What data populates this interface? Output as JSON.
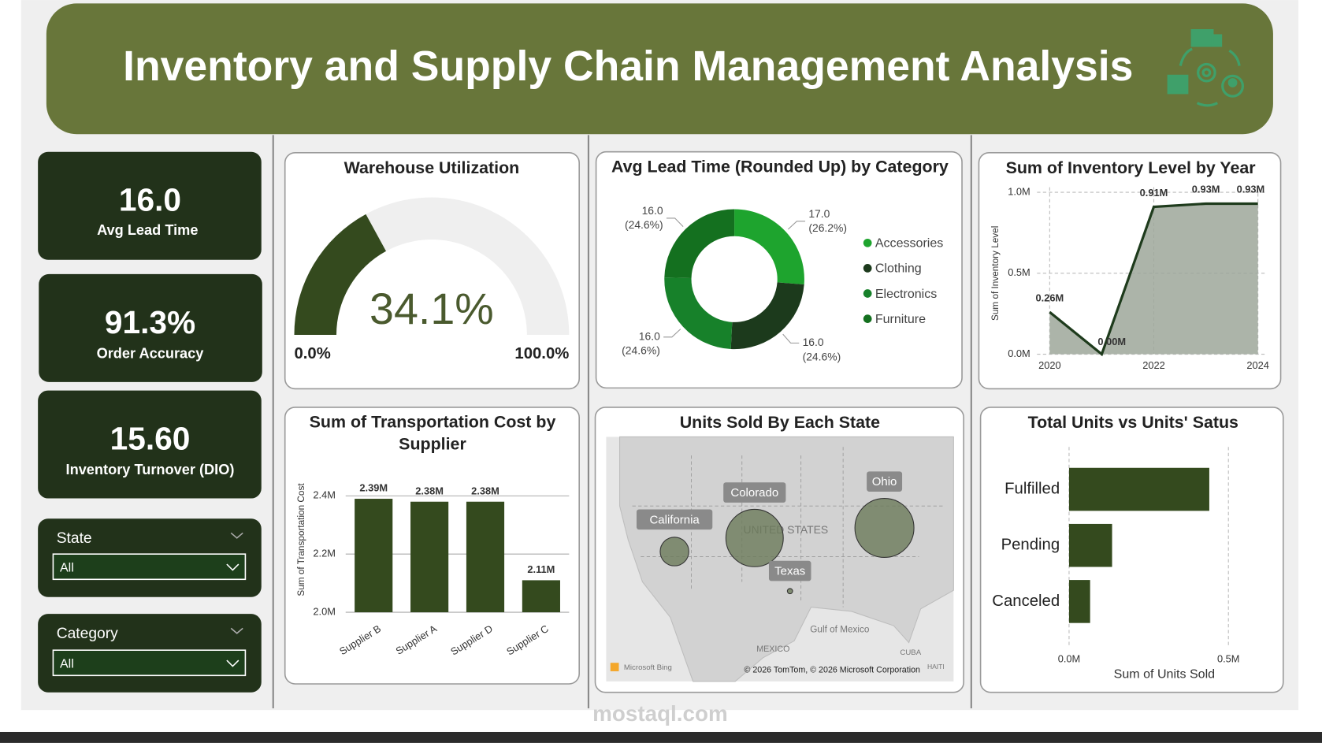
{
  "header": {
    "title": "Inventory and Supply Chain Management Analysis"
  },
  "kpis": [
    {
      "value": "16.0",
      "label": "Avg Lead Time"
    },
    {
      "value": "91.3%",
      "label": "Order Accuracy"
    },
    {
      "value": "15.60",
      "label": "Inventory Turnover (DIO)"
    }
  ],
  "filters": [
    {
      "label": "State",
      "value": "All"
    },
    {
      "label": "Category",
      "value": "All"
    }
  ],
  "watermark": "mostaql.com",
  "chart_data": [
    {
      "type": "gauge",
      "title": "Warehouse Utilization",
      "values": [
        34.1
      ],
      "value_labels": [
        "34.1%"
      ],
      "color": "#344a1e",
      "track_color": "#efefef",
      "ylim": [
        0,
        100
      ],
      "yticks": [
        {
          "value": 0,
          "label": "0.0%"
        },
        {
          "value": 100,
          "label": "100.0%"
        }
      ]
    },
    {
      "type": "pie",
      "title": "Avg Lead Time (Rounded Up) by Category",
      "categories": [
        "Accessories",
        "Clothing",
        "Electronics",
        "Furniture"
      ],
      "values": [
        17.0,
        16.0,
        16.0,
        16.0
      ],
      "value_labels": [
        "17.0",
        "16.0",
        "16.0",
        "16.0"
      ],
      "shares": [
        26.2,
        24.6,
        24.6,
        24.6
      ],
      "share_labels": [
        "(26.2%)",
        "(24.6%)",
        "(24.6%)",
        "(24.6%)"
      ],
      "colors": [
        "#1ea42e",
        "#1c3a1c",
        "#17812a",
        "#14701f"
      ],
      "legend": "right"
    },
    {
      "type": "area",
      "title": "Sum of Inventory Level by Year",
      "y_label": "Sum of Inventory Level",
      "x": [
        2020,
        2021,
        2022,
        2023,
        2024
      ],
      "values": [
        260000,
        0,
        910000,
        930000,
        930000
      ],
      "value_labels": [
        "0.26M",
        "0.00M",
        "0.91M",
        "0.93M",
        "0.93M"
      ],
      "color": "#1e3b1c",
      "fill": "#9ea79a",
      "xlim": [
        2020,
        2024
      ],
      "xticks": [
        2020,
        2022,
        2024
      ],
      "ylim": [
        0,
        1000000
      ],
      "yticks": [
        {
          "value": 0,
          "label": "0.0M"
        },
        {
          "value": 500000,
          "label": "0.5M"
        },
        {
          "value": 1000000,
          "label": "1.0M"
        }
      ],
      "grid": true
    },
    {
      "type": "bar",
      "title": "Sum of Transportation Cost by Supplier",
      "y_label": "Sum of Transportation Cost",
      "categories": [
        "Supplier B",
        "Supplier A",
        "Supplier D",
        "Supplier C"
      ],
      "values": [
        2390000,
        2380000,
        2380000,
        2110000
      ],
      "value_labels": [
        "2.39M",
        "2.38M",
        "2.38M",
        "2.11M"
      ],
      "color": "#344a1e",
      "ylim": [
        2000000,
        2450000
      ],
      "yticks": [
        {
          "value": 2000000,
          "label": "2.0M"
        },
        {
          "value": 2200000,
          "label": "2.2M"
        },
        {
          "value": 2400000,
          "label": "2.4M"
        }
      ],
      "grid": true
    },
    {
      "type": "map",
      "title": "Units Sold By Each State",
      "categories": [
        "California",
        "Colorado",
        "Ohio",
        "Texas"
      ],
      "values": [
        59000,
        237000,
        251000,
        2000
      ],
      "color": "#6b7a5a",
      "map_labels": [
        "UNITED STATES",
        "Gulf of Mexico",
        "MEXICO",
        "CUBA",
        "HAITI",
        "Microsoft Bing",
        "© 2026 TomTom, © 2026 Microsoft Corporation"
      ]
    },
    {
      "type": "bar",
      "orientation": "horizontal",
      "title": "Total Units vs Units' Satus",
      "x_label": "Sum of Units Sold",
      "categories": [
        "Fulfilled",
        "Pending",
        "Canceled"
      ],
      "values": [
        440000,
        135000,
        66000
      ],
      "color": "#344a1e",
      "xlim": [
        0,
        530000
      ],
      "xticks": [
        {
          "value": 0,
          "label": "0.0M"
        },
        {
          "value": 500000,
          "label": "0.5M"
        }
      ],
      "grid": true
    }
  ]
}
